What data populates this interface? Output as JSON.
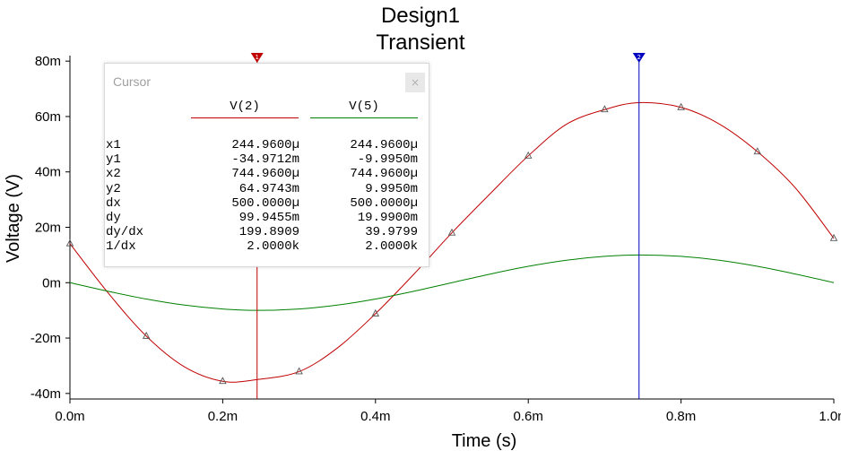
{
  "chart_data": {
    "type": "line",
    "title": "Design1",
    "subtitle": "Transient",
    "xlabel": "Time (s)",
    "ylabel": "Voltage (V)",
    "xlim": [
      0,
      0.001
    ],
    "ylim": [
      -0.042,
      0.082
    ],
    "x_ticks": [
      {
        "value": 0,
        "label": "0.0m"
      },
      {
        "value": 0.0002,
        "label": "0.2m"
      },
      {
        "value": 0.0004,
        "label": "0.4m"
      },
      {
        "value": 0.0006,
        "label": "0.6m"
      },
      {
        "value": 0.0008,
        "label": "0.8m"
      },
      {
        "value": 0.001,
        "label": "1.0m"
      }
    ],
    "y_ticks": [
      {
        "value": -0.04,
        "label": "-40m"
      },
      {
        "value": -0.02,
        "label": "-20m"
      },
      {
        "value": 0,
        "label": "0m"
      },
      {
        "value": 0.02,
        "label": "20m"
      },
      {
        "value": 0.04,
        "label": "40m"
      },
      {
        "value": 0.06,
        "label": "60m"
      },
      {
        "value": 0.08,
        "label": "80m"
      }
    ],
    "grid": false,
    "series": [
      {
        "name": "V(2)",
        "color": "#c00000",
        "marker": "triangle",
        "x": [
          0,
          5e-05,
          0.0001,
          0.00015,
          0.0002,
          0.000245,
          0.0003,
          0.00035,
          0.0004,
          0.00045,
          0.0005,
          0.00055,
          0.0006,
          0.00065,
          0.0007,
          0.000745,
          0.0008,
          0.00085,
          0.0009,
          0.00095,
          0.001
        ],
        "y": [
          0.0141,
          -0.0037,
          -0.0193,
          -0.0304,
          -0.0356,
          -0.035,
          -0.0321,
          -0.0236,
          -0.0112,
          0.003,
          0.018,
          0.0321,
          0.0458,
          0.0572,
          0.0625,
          0.065,
          0.0633,
          0.0573,
          0.0473,
          0.0341,
          0.016
        ]
      },
      {
        "name": "V(5)",
        "color": "#008000",
        "x": [
          0,
          5e-05,
          0.0001,
          0.00015,
          0.0002,
          0.000245,
          0.0003,
          0.00035,
          0.0004,
          0.00045,
          0.0005,
          0.00055,
          0.0006,
          0.00065,
          0.0007,
          0.000745,
          0.0008,
          0.00085,
          0.0009,
          0.00095,
          0.001
        ],
        "y": [
          0,
          -0.0031,
          -0.0059,
          -0.0081,
          -0.0095,
          -0.01,
          -0.0095,
          -0.0081,
          -0.0059,
          -0.0031,
          0,
          0.0031,
          0.0059,
          0.0081,
          0.0095,
          0.01,
          0.0095,
          0.0081,
          0.0059,
          0.0031,
          0
        ]
      }
    ],
    "cursors": [
      {
        "x": 0.000245,
        "color": "#c00000",
        "label": "1"
      },
      {
        "x": 0.000745,
        "color": "#0000c0",
        "label": "2"
      }
    ]
  },
  "cursor_panel": {
    "title": "Cursor",
    "close": "×",
    "columns": [
      {
        "name": "V(2)",
        "color": "#c00000"
      },
      {
        "name": "V(5)",
        "color": "#008000"
      }
    ],
    "rows": [
      {
        "label": "x1",
        "v1": "244.9600µ",
        "v2": "244.9600µ"
      },
      {
        "label": "y1",
        "v1": "-34.9712m",
        "v2": "-9.9950m"
      },
      {
        "label": "x2",
        "v1": "744.9600µ",
        "v2": "744.9600µ"
      },
      {
        "label": "y2",
        "v1": "64.9743m",
        "v2": "9.9950m"
      },
      {
        "label": "dx",
        "v1": "500.0000µ",
        "v2": "500.0000µ"
      },
      {
        "label": "dy",
        "v1": "99.9455m",
        "v2": "19.9900m"
      },
      {
        "label": "dy/dx",
        "v1": "199.8909",
        "v2": "39.9799"
      },
      {
        "label": "1/dx",
        "v1": "2.0000k",
        "v2": "2.0000k"
      }
    ]
  }
}
